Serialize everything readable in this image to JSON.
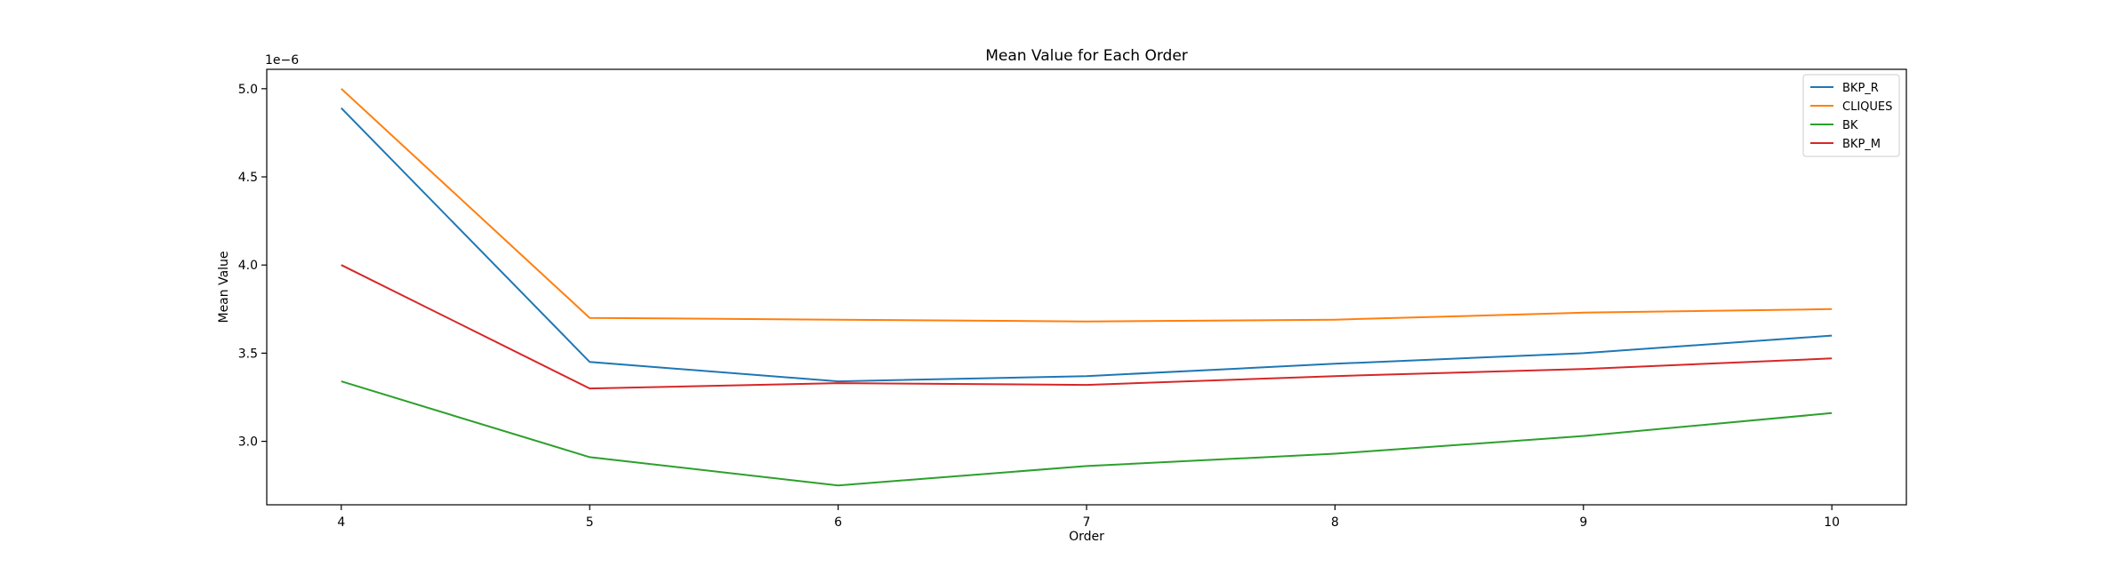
{
  "chart_data": {
    "type": "line",
    "title": "Mean Value for Each Order",
    "xlabel": "Order",
    "ylabel": "Mean Value",
    "offset_text": "1e−6",
    "x": [
      4,
      5,
      6,
      7,
      8,
      9,
      10
    ],
    "xticks": [
      "4",
      "5",
      "6",
      "7",
      "8",
      "9",
      "10"
    ],
    "yticks": [
      3.0,
      3.5,
      4.0,
      4.5,
      5.0
    ],
    "ytick_labels": [
      "3.0",
      "3.5",
      "4.0",
      "4.5",
      "5.0"
    ],
    "xlim": [
      3.7,
      10.3
    ],
    "ylim": [
      2.64,
      5.11
    ],
    "grid": false,
    "legend_position": "top-right",
    "series": [
      {
        "name": "BKP_R",
        "color": "#1f77b4",
        "values": [
          4.89,
          3.45,
          3.34,
          3.37,
          3.44,
          3.5,
          3.6
        ]
      },
      {
        "name": "CLIQUES",
        "color": "#ff7f0e",
        "values": [
          5.0,
          3.7,
          3.69,
          3.68,
          3.69,
          3.73,
          3.75
        ]
      },
      {
        "name": "BK",
        "color": "#2ca02c",
        "values": [
          3.34,
          2.91,
          2.75,
          2.86,
          2.93,
          3.03,
          3.16
        ]
      },
      {
        "name": "BKP_M",
        "color": "#d62728",
        "values": [
          4.0,
          3.3,
          3.33,
          3.32,
          3.37,
          3.41,
          3.47
        ]
      }
    ]
  }
}
